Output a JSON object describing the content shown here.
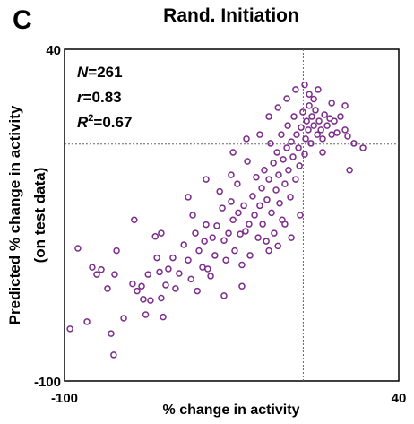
{
  "chart_data": {
    "type": "scatter",
    "panel_label": "C",
    "title": "Rand. Initiation",
    "x_label": "% change in activity",
    "y_label": [
      "Predicted % change in activity",
      "(on test data)"
    ],
    "annotations": [
      {
        "italic": "N",
        "text": "=261"
      },
      {
        "italic": "r",
        "text": "=0.83"
      },
      {
        "italic": "R",
        "sup": "2",
        "text": "=0.67"
      }
    ],
    "xlim": [
      -100,
      40
    ],
    "ylim": [
      -100,
      40
    ],
    "xticks": [
      -100,
      40
    ],
    "yticks": [
      -100,
      40
    ],
    "reference_x": 0,
    "reference_y": 0,
    "color": "#7b2a8b",
    "x": [
      -97.7,
      -94.4,
      -90.6,
      -88.4,
      -86.5,
      -84.6,
      -82,
      -80.5,
      -79.4,
      -78.2,
      -79,
      -75.2,
      -71.5,
      -70.8,
      -69.6,
      -67.7,
      -67,
      -66,
      -65,
      -64,
      -62,
      -61.3,
      -60.2,
      -59.5,
      -58.7,
      -57.6,
      -56.5,
      -54.6,
      -53.5,
      -52,
      -50,
      -48.2,
      -47,
      -46.3,
      -45.2,
      -44.4,
      -43.7,
      -42.2,
      -41.4,
      -40.7,
      -40,
      -38.8,
      -38,
      -37,
      -36.2,
      -35,
      -33.9,
      -33.2,
      -32.4,
      -31.3,
      -30.2,
      -29.4,
      -28.7,
      -27.6,
      -27.2,
      -26.4,
      -25.7,
      -24.9,
      -24.2,
      -23.4,
      -22.7,
      -22.3,
      -21.2,
      -20.4,
      -19.7,
      -18.9,
      -18.2,
      -17.4,
      -17,
      -16.3,
      -15.5,
      -15.2,
      -14.4,
      -13.7,
      -13.3,
      -12.5,
      -12.2,
      -11.4,
      -11,
      -10.3,
      -9.9,
      -9.2,
      -8.8,
      -8.4,
      -7.7,
      -6.9,
      -6.5,
      -6.2,
      -5.4,
      -5,
      -4.3,
      -3.9,
      -3.2,
      -2.8,
      -2,
      -1.6,
      -1.3,
      -0.9,
      -0.2,
      0.6,
      1,
      1.4,
      2.1,
      2.5,
      3.2,
      3.6,
      4.4,
      5.1,
      5.9,
      6.6,
      7.4,
      8.1,
      8.9,
      10,
      11.1,
      11.9,
      13,
      14.1,
      15.6,
      17.5,
      18.6,
      19.4,
      21.2,
      25,
      8.1,
      2.5,
      4.4,
      -30.2,
      -48.2,
      -40.7,
      -59.5,
      -18.2,
      -14.4,
      -10.6,
      -6.9,
      -3.2,
      0.6,
      6.2,
      11.9,
      17.5,
      -33.2,
      -25.7,
      -14.4,
      -10.6,
      -5,
      -7.7,
      -29.4,
      -23.8
    ],
    "values": [
      -78,
      -44,
      -75,
      -52,
      -55,
      -53,
      -61,
      -80,
      -89,
      -45,
      -55,
      -73.5,
      -59,
      -32,
      -62,
      -60,
      -65.5,
      -72,
      -55,
      -66,
      -39,
      -48,
      -54,
      -65,
      -73,
      -59.5,
      -52.7,
      -48,
      -61,
      -54.6,
      -42.5,
      -49,
      -57,
      -30,
      -37.6,
      -62,
      -45,
      -52,
      -41,
      -34,
      -52.7,
      -55.7,
      -39.5,
      -47,
      -34.5,
      -20,
      -27,
      -40.7,
      -49,
      -37.6,
      -24.3,
      -32,
      -45,
      -16.8,
      -29,
      -38,
      -51,
      -26,
      -36.8,
      -7.3,
      -33.8,
      -47,
      -22,
      -30,
      -14,
      -39.5,
      -26,
      -18.6,
      -33.8,
      -11,
      -41,
      -23.5,
      -14.9,
      0.3,
      -29,
      -8,
      -37.6,
      -19.4,
      -3.5,
      -13,
      -25,
      4,
      -32,
      -6.5,
      -16.8,
      -1.6,
      7.8,
      -11,
      -22.4,
      1,
      -5.4,
      11.6,
      -14.9,
      4,
      -1.6,
      -9.2,
      -30,
      7,
      13.5,
      -4.3,
      2.2,
      9.7,
      6,
      16.2,
      0.3,
      11.6,
      7.8,
      14.3,
      4,
      9.7,
      6,
      2.2,
      12.4,
      7.8,
      10.8,
      4,
      9.7,
      4.8,
      11.6,
      6,
      3.3,
      -11,
      0.3,
      -1.6,
      -3.5,
      21,
      19,
      -13,
      -22.4,
      -14.9,
      -37.6,
      4,
      11.6,
      15.4,
      19.2,
      23,
      25,
      23,
      17.3,
      16.2,
      -64,
      -60,
      -45,
      -43,
      -39.5,
      -33.8,
      -3.5,
      2.2
    ]
  }
}
